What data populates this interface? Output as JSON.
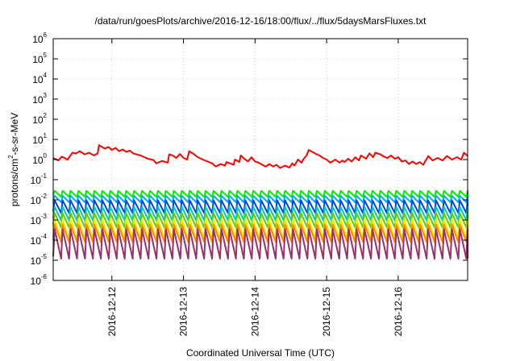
{
  "chart_data": {
    "type": "line",
    "title": "/data/run/goesPlots/archive/2016-12-16/18:00/flux/../flux/5daysMarsFluxes.txt",
    "xlabel": "Coordinated Universal Time (UTC)",
    "ylabel_parts": [
      "protons/cm",
      "2",
      "-s-sr-MeV"
    ],
    "y_scale": "log",
    "ylim_exp": [
      -6,
      6
    ],
    "y_ticks": [
      {
        "base": "10",
        "exp": "-6",
        "value": 1e-06
      },
      {
        "base": "10",
        "exp": "-5",
        "value": 1e-05
      },
      {
        "base": "10",
        "exp": "-4",
        "value": 0.0001
      },
      {
        "base": "10",
        "exp": "-3",
        "value": 0.001
      },
      {
        "base": "10",
        "exp": "-2",
        "value": 0.01
      },
      {
        "base": "10",
        "exp": "-1",
        "value": 0.1
      },
      {
        "base": "10",
        "exp": "0",
        "value": 1
      },
      {
        "base": "10",
        "exp": "1",
        "value": 10
      },
      {
        "base": "10",
        "exp": "2",
        "value": 100
      },
      {
        "base": "10",
        "exp": "3",
        "value": 1000
      },
      {
        "base": "10",
        "exp": "4",
        "value": 10000
      },
      {
        "base": "10",
        "exp": "5",
        "value": 100000
      },
      {
        "base": "10",
        "exp": "6",
        "value": 1000000
      }
    ],
    "xlim_days": [
      -0.82,
      4.97
    ],
    "x_ticks": [
      {
        "label": "2016-12-12",
        "day": 0
      },
      {
        "label": "2016-12-13",
        "day": 1
      },
      {
        "label": "2016-12-14",
        "day": 2
      },
      {
        "label": "2016-12-15",
        "day": 3
      },
      {
        "label": "2016-12-16",
        "day": 4
      }
    ],
    "grid": true,
    "series": [
      {
        "color": "#ff0000",
        "points": [
          [
            -0.82,
            1.2
          ],
          [
            -0.75,
            0.9
          ],
          [
            -0.7,
            1.4
          ],
          [
            -0.62,
            1.0
          ],
          [
            -0.55,
            2.2
          ],
          [
            -0.5,
            2.0
          ],
          [
            -0.45,
            2.6
          ],
          [
            -0.38,
            1.8
          ],
          [
            -0.32,
            2.2
          ],
          [
            -0.25,
            1.6
          ],
          [
            -0.2,
            2.0
          ],
          [
            -0.18,
            5.2
          ],
          [
            -0.1,
            3.5
          ],
          [
            -0.05,
            4.2
          ],
          [
            0.0,
            3.0
          ],
          [
            0.05,
            3.8
          ],
          [
            0.1,
            2.6
          ],
          [
            0.15,
            3.2
          ],
          [
            0.2,
            2.4
          ],
          [
            0.25,
            2.8
          ],
          [
            0.3,
            2.0
          ],
          [
            0.4,
            1.6
          ],
          [
            0.5,
            1.1
          ],
          [
            0.58,
            0.95
          ],
          [
            0.62,
            0.65
          ],
          [
            0.7,
            0.85
          ],
          [
            0.78,
            0.7
          ],
          [
            0.8,
            1.8
          ],
          [
            0.85,
            1.6
          ],
          [
            0.9,
            1.2
          ],
          [
            0.95,
            1.9
          ],
          [
            1.0,
            1.2
          ],
          [
            1.05,
            1.0
          ],
          [
            1.08,
            2.6
          ],
          [
            1.15,
            1.8
          ],
          [
            1.2,
            1.3
          ],
          [
            1.3,
            0.9
          ],
          [
            1.4,
            0.65
          ],
          [
            1.45,
            0.45
          ],
          [
            1.52,
            0.6
          ],
          [
            1.58,
            0.5
          ],
          [
            1.6,
            0.75
          ],
          [
            1.7,
            0.55
          ],
          [
            1.72,
            1.0
          ],
          [
            1.78,
            0.75
          ],
          [
            1.8,
            1.6
          ],
          [
            1.85,
            1.1
          ],
          [
            1.9,
            0.8
          ],
          [
            1.95,
            1.3
          ],
          [
            2.0,
            0.8
          ],
          [
            2.05,
            0.7
          ],
          [
            2.1,
            0.55
          ],
          [
            2.15,
            0.45
          ],
          [
            2.2,
            0.6
          ],
          [
            2.25,
            0.45
          ],
          [
            2.3,
            0.55
          ],
          [
            2.35,
            0.38
          ],
          [
            2.42,
            0.5
          ],
          [
            2.48,
            0.4
          ],
          [
            2.52,
            0.65
          ],
          [
            2.55,
            0.5
          ],
          [
            2.6,
            1.0
          ],
          [
            2.65,
            0.7
          ],
          [
            2.68,
            1.1
          ],
          [
            2.72,
            1.6
          ],
          [
            2.75,
            3.0
          ],
          [
            2.8,
            2.4
          ],
          [
            2.85,
            1.9
          ],
          [
            2.9,
            1.6
          ],
          [
            2.95,
            1.2
          ],
          [
            3.0,
            1.0
          ],
          [
            3.05,
            0.7
          ],
          [
            3.08,
            0.8
          ],
          [
            3.12,
            1.0
          ],
          [
            3.18,
            0.7
          ],
          [
            3.22,
            0.9
          ],
          [
            3.25,
            0.75
          ],
          [
            3.3,
            1.1
          ],
          [
            3.35,
            0.8
          ],
          [
            3.4,
            1.3
          ],
          [
            3.45,
            0.9
          ],
          [
            3.48,
            1.6
          ],
          [
            3.55,
            1.1
          ],
          [
            3.6,
            2.0
          ],
          [
            3.65,
            1.3
          ],
          [
            3.68,
            2.2
          ],
          [
            3.75,
            1.8
          ],
          [
            3.8,
            1.4
          ],
          [
            3.85,
            1.2
          ],
          [
            3.9,
            1.6
          ],
          [
            3.95,
            1.1
          ],
          [
            4.0,
            1.3
          ],
          [
            4.05,
            0.8
          ],
          [
            4.1,
            0.9
          ],
          [
            4.15,
            0.6
          ],
          [
            4.2,
            0.8
          ],
          [
            4.25,
            0.6
          ],
          [
            4.3,
            0.75
          ],
          [
            4.35,
            0.55
          ],
          [
            4.42,
            1.5
          ],
          [
            4.48,
            0.9
          ],
          [
            4.55,
            1.2
          ],
          [
            4.62,
            0.9
          ],
          [
            4.68,
            1.5
          ],
          [
            4.75,
            1.0
          ],
          [
            4.82,
            1.3
          ],
          [
            4.88,
            1.0
          ],
          [
            4.92,
            2.2
          ],
          [
            4.97,
            1.5
          ]
        ]
      },
      {
        "color": "#00ee00",
        "teeth": {
          "peak": 0.028,
          "trough": 0.014,
          "period": 0.111,
          "rise": 0.02
        }
      },
      {
        "color": "#00aaff",
        "teeth": {
          "peak": 0.016,
          "trough": 0.0075,
          "period": 0.111,
          "rise": 0.02
        }
      },
      {
        "color": "#0044dd",
        "teeth": {
          "peak": 0.0095,
          "trough": 0.0022,
          "period": 0.111,
          "rise": 0.02
        }
      },
      {
        "color": "#00ccbb",
        "teeth": {
          "peak": 0.0045,
          "trough": 0.00095,
          "period": 0.111,
          "rise": 0.02
        }
      },
      {
        "color": "#66cc00",
        "teeth": {
          "peak": 0.0022,
          "trough": 0.00042,
          "period": 0.111,
          "rise": 0.02
        }
      },
      {
        "color": "#eeee00",
        "teeth": {
          "peak": 0.0011,
          "trough": 0.00011,
          "period": 0.111,
          "rise": 0.02
        }
      },
      {
        "color": "#ff8800",
        "teeth": {
          "peak": 0.0006,
          "trough": 8e-05,
          "period": 0.111,
          "rise": 0.02
        }
      },
      {
        "color": "#993366",
        "teeth": {
          "peak": 0.00035,
          "trough": 1.2e-05,
          "period": 0.111,
          "rise": 0.02
        }
      }
    ]
  }
}
